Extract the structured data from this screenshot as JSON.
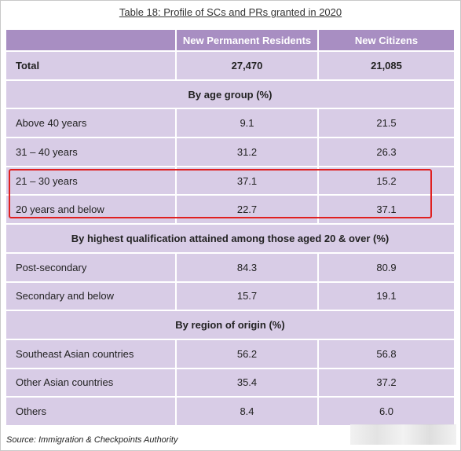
{
  "title": "Table 18: Profile of SCs and PRs granted in 2020",
  "headers": [
    "",
    "New Permanent Residents",
    "New Citizens"
  ],
  "total": {
    "label": "Total",
    "pr": "27,470",
    "citizens": "21,085"
  },
  "sections": {
    "age": "By age group (%)",
    "qualification": "By highest qualification attained among those aged 20 & over (%)",
    "region": "By region of origin (%)"
  },
  "rows": {
    "age": [
      {
        "label": "Above 40 years",
        "pr": "9.1",
        "citizens": "21.5"
      },
      {
        "label": "31 – 40 years",
        "pr": "31.2",
        "citizens": "26.3"
      },
      {
        "label": "21 – 30 years",
        "pr": "37.1",
        "citizens": "15.2"
      },
      {
        "label": "20 years and below",
        "pr": "22.7",
        "citizens": "37.1"
      }
    ],
    "qualification": [
      {
        "label": "Post-secondary",
        "pr": "84.3",
        "citizens": "80.9"
      },
      {
        "label": "Secondary and below",
        "pr": "15.7",
        "citizens": "19.1"
      }
    ],
    "region": [
      {
        "label": "Southeast Asian countries",
        "pr": "56.2",
        "citizens": "56.8"
      },
      {
        "label": "Other Asian countries",
        "pr": "35.4",
        "citizens": "37.2"
      },
      {
        "label": "Others",
        "pr": "8.4",
        "citizens": "6.0"
      }
    ]
  },
  "source": "Source: Immigration & Checkpoints Authority",
  "colors": {
    "header": "#a88ec2",
    "cell": "#d8cce6",
    "highlight": "#e02020"
  }
}
